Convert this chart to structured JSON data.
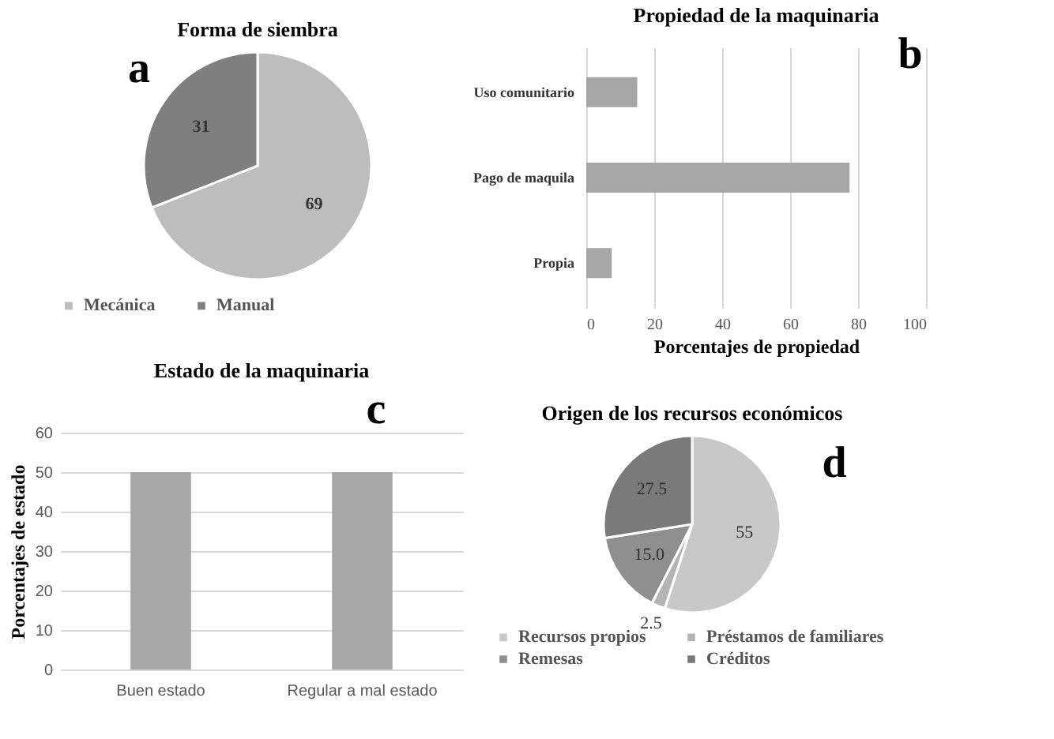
{
  "chart_data": [
    {
      "type": "pie",
      "title": "Forma de siembra",
      "annotations": [
        "a"
      ],
      "categories": [
        "Mecánica",
        "Manual"
      ],
      "values": [
        69,
        31
      ],
      "colors": [
        "#bdbdbd",
        "#7f7f7f"
      ],
      "data_labels": true,
      "legend": "bottom"
    },
    {
      "type": "bar",
      "orientation": "horizontal",
      "title": "Propiedad de la maquinaria",
      "annotations": [
        "b"
      ],
      "xlabel": "Porcentajes de propiedad",
      "categories": [
        "Uso comunitario",
        "Pago de maquila",
        "Propia"
      ],
      "values": [
        15,
        77.5,
        7.5
      ],
      "color": "#a6a6a6",
      "xlim": [
        0,
        100
      ],
      "xticks": [
        0,
        20,
        40,
        60,
        80,
        100
      ],
      "grid": "x"
    },
    {
      "type": "bar",
      "title": "Estado de la maquinaria",
      "annotations": [
        "c"
      ],
      "ylabel": "Porcentajes de estado",
      "categories": [
        "Buen estado",
        "Regular a mal estado"
      ],
      "values": [
        50,
        50
      ],
      "color": "#a6a6a6",
      "ylim": [
        0,
        60
      ],
      "yticks": [
        0,
        10,
        20,
        30,
        40,
        50,
        60
      ],
      "grid": "y"
    },
    {
      "type": "pie",
      "title": "Origen de los recursos económicos",
      "annotations": [
        "d"
      ],
      "categories": [
        "Recursos propios",
        "Préstamos de familiares",
        "Remesas",
        "Créditos"
      ],
      "values": [
        55,
        2.5,
        15,
        27.5
      ],
      "colors": [
        "#c8c8c8",
        "#b4b4b4",
        "#8f8f8f",
        "#7a7a7a"
      ],
      "value_labels": [
        "55",
        "2.5",
        "15.0",
        "27.5"
      ],
      "legend": "bottom"
    }
  ]
}
